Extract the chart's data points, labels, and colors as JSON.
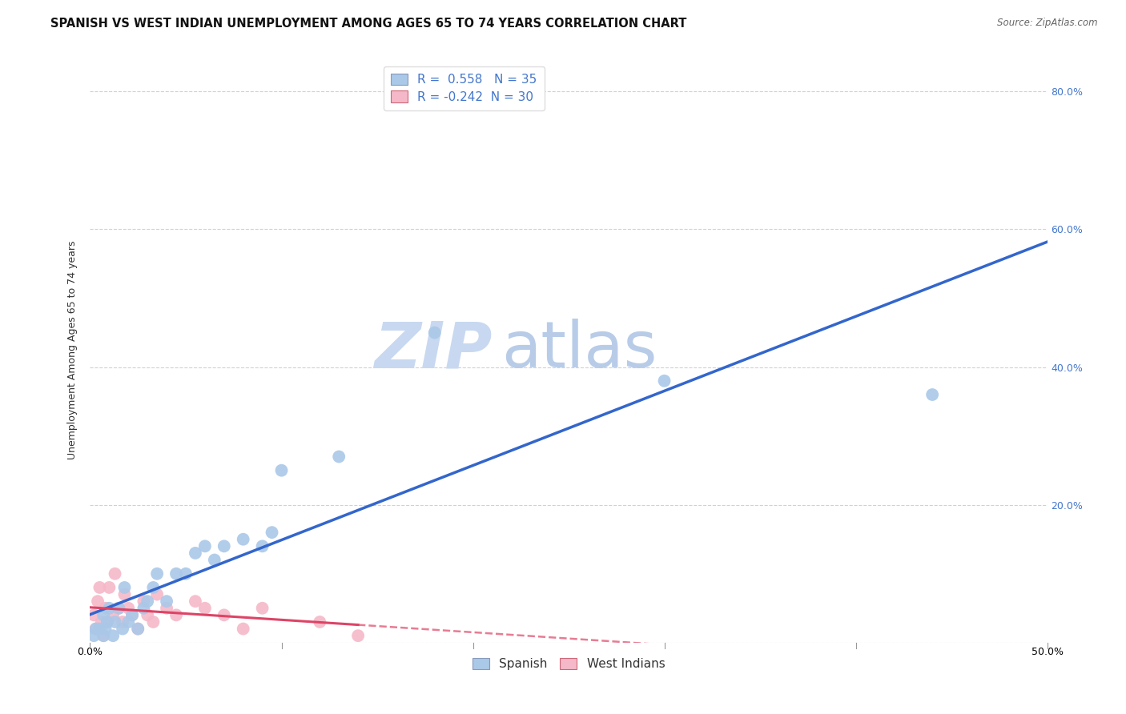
{
  "title": "SPANISH VS WEST INDIAN UNEMPLOYMENT AMONG AGES 65 TO 74 YEARS CORRELATION CHART",
  "source": "Source: ZipAtlas.com",
  "ylabel": "Unemployment Among Ages 65 to 74 years",
  "xlim": [
    0.0,
    0.5
  ],
  "ylim": [
    0.0,
    0.85
  ],
  "xticks": [
    0.0,
    0.1,
    0.2,
    0.3,
    0.4,
    0.5
  ],
  "yticks": [
    0.0,
    0.2,
    0.4,
    0.6,
    0.8
  ],
  "xticklabels": [
    "0.0%",
    "",
    "",
    "",
    "",
    "50.0%"
  ],
  "yticklabels_right": [
    "",
    "20.0%",
    "40.0%",
    "60.0%",
    "80.0%"
  ],
  "spanish_R": 0.558,
  "spanish_N": 35,
  "westindian_R": -0.242,
  "westindian_N": 30,
  "background_color": "#ffffff",
  "plot_bg_color": "#ffffff",
  "grid_color": "#cccccc",
  "spanish_color": "#aac8e8",
  "westindian_color": "#f5b8c8",
  "spanish_line_color": "#3366cc",
  "westindian_line_color": "#dd4466",
  "legend_text_color": "#4477cc",
  "spanish_x": [
    0.002,
    0.003,
    0.005,
    0.007,
    0.007,
    0.008,
    0.009,
    0.01,
    0.012,
    0.013,
    0.015,
    0.017,
    0.018,
    0.02,
    0.022,
    0.025,
    0.028,
    0.03,
    0.033,
    0.035,
    0.04,
    0.045,
    0.05,
    0.055,
    0.06,
    0.065,
    0.07,
    0.08,
    0.09,
    0.095,
    0.1,
    0.13,
    0.18,
    0.3,
    0.44
  ],
  "spanish_y": [
    0.01,
    0.02,
    0.02,
    0.01,
    0.04,
    0.02,
    0.03,
    0.05,
    0.01,
    0.03,
    0.05,
    0.02,
    0.08,
    0.03,
    0.04,
    0.02,
    0.05,
    0.06,
    0.08,
    0.1,
    0.06,
    0.1,
    0.1,
    0.13,
    0.14,
    0.12,
    0.14,
    0.15,
    0.14,
    0.16,
    0.25,
    0.27,
    0.45,
    0.38,
    0.36
  ],
  "westindian_x": [
    0.002,
    0.003,
    0.004,
    0.005,
    0.006,
    0.007,
    0.008,
    0.009,
    0.01,
    0.012,
    0.013,
    0.015,
    0.017,
    0.018,
    0.02,
    0.022,
    0.025,
    0.028,
    0.03,
    0.033,
    0.035,
    0.04,
    0.045,
    0.055,
    0.06,
    0.07,
    0.08,
    0.09,
    0.12,
    0.14
  ],
  "westindian_y": [
    0.04,
    0.02,
    0.06,
    0.08,
    0.03,
    0.01,
    0.05,
    0.03,
    0.08,
    0.04,
    0.1,
    0.05,
    0.03,
    0.07,
    0.05,
    0.04,
    0.02,
    0.06,
    0.04,
    0.03,
    0.07,
    0.05,
    0.04,
    0.06,
    0.05,
    0.04,
    0.02,
    0.05,
    0.03,
    0.01
  ],
  "marker_size": 130,
  "title_fontsize": 10.5,
  "axis_fontsize": 9,
  "tick_fontsize": 9,
  "legend_fontsize": 11,
  "watermark_text1": "ZIP",
  "watermark_text2": "atlas",
  "watermark_color1": "#c8d8f0",
  "watermark_color2": "#b8cce8",
  "watermark_fontsize": 58
}
